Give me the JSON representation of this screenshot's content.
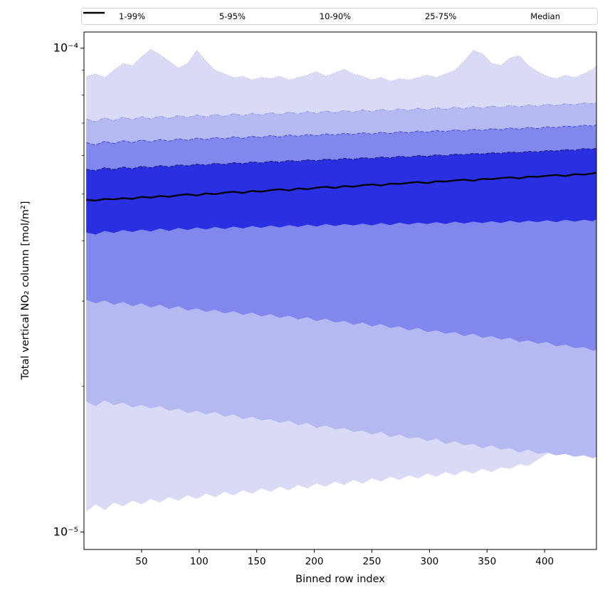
{
  "figure": {
    "background": "#ffffff"
  },
  "legend": {
    "position": "top"
  },
  "chart_data": {
    "type": "band",
    "title": "",
    "xlabel": "Binned row index",
    "ylabel": "Total vertical NO₂ column [mol/m²]",
    "xlim": [
      0,
      445
    ],
    "x_ticks": [
      50,
      100,
      150,
      200,
      250,
      300,
      350,
      400
    ],
    "yscale": "log",
    "ylim": [
      9.2e-06,
      0.000108
    ],
    "y_major_ticks": [
      1e-05,
      0.0001
    ],
    "y_tick_labels": [
      "10⁻⁵",
      "10⁻⁴"
    ],
    "y_minor_ticks": [
      2e-05,
      3e-05,
      4e-05,
      5e-05,
      6e-05,
      7e-05,
      8e-05,
      9e-05
    ],
    "value_scale": 1e-05,
    "x": [
      2,
      10,
      18,
      26,
      34,
      42,
      50,
      58,
      66,
      74,
      82,
      90,
      98,
      106,
      114,
      122,
      130,
      138,
      146,
      154,
      162,
      170,
      178,
      186,
      194,
      202,
      210,
      218,
      226,
      234,
      242,
      250,
      258,
      266,
      274,
      282,
      290,
      298,
      306,
      314,
      322,
      330,
      338,
      346,
      354,
      362,
      370,
      378,
      386,
      394,
      402,
      410,
      418,
      426,
      434,
      442,
      445
    ],
    "percentiles": {
      "p1": [
        1.1,
        1.14,
        1.11,
        1.15,
        1.13,
        1.16,
        1.14,
        1.17,
        1.15,
        1.18,
        1.16,
        1.19,
        1.17,
        1.2,
        1.18,
        1.21,
        1.19,
        1.22,
        1.2,
        1.23,
        1.21,
        1.24,
        1.22,
        1.25,
        1.23,
        1.26,
        1.24,
        1.27,
        1.25,
        1.28,
        1.26,
        1.29,
        1.27,
        1.3,
        1.28,
        1.31,
        1.29,
        1.32,
        1.3,
        1.33,
        1.31,
        1.34,
        1.32,
        1.35,
        1.33,
        1.36,
        1.35,
        1.38,
        1.37,
        1.41,
        1.45,
        1.5,
        1.56,
        1.63,
        1.71,
        1.8,
        1.9
      ],
      "p5": [
        1.86,
        1.82,
        1.87,
        1.83,
        1.85,
        1.81,
        1.83,
        1.8,
        1.82,
        1.78,
        1.8,
        1.76,
        1.78,
        1.75,
        1.77,
        1.73,
        1.75,
        1.71,
        1.73,
        1.7,
        1.71,
        1.68,
        1.7,
        1.66,
        1.68,
        1.64,
        1.66,
        1.63,
        1.64,
        1.61,
        1.62,
        1.59,
        1.61,
        1.57,
        1.59,
        1.56,
        1.57,
        1.54,
        1.56,
        1.52,
        1.54,
        1.51,
        1.52,
        1.49,
        1.51,
        1.48,
        1.49,
        1.46,
        1.48,
        1.45,
        1.46,
        1.44,
        1.45,
        1.43,
        1.44,
        1.42,
        1.43
      ],
      "p10": [
        3.02,
        2.97,
        3.01,
        2.95,
        2.99,
        2.93,
        2.97,
        2.91,
        2.95,
        2.89,
        2.93,
        2.87,
        2.9,
        2.85,
        2.88,
        2.83,
        2.86,
        2.81,
        2.84,
        2.79,
        2.82,
        2.77,
        2.8,
        2.75,
        2.78,
        2.73,
        2.76,
        2.71,
        2.73,
        2.68,
        2.71,
        2.66,
        2.69,
        2.64,
        2.66,
        2.61,
        2.64,
        2.59,
        2.61,
        2.57,
        2.59,
        2.54,
        2.57,
        2.52,
        2.54,
        2.5,
        2.52,
        2.47,
        2.49,
        2.45,
        2.47,
        2.42,
        2.44,
        2.4,
        2.41,
        2.37,
        2.38
      ],
      "p25": [
        4.16,
        4.12,
        4.19,
        4.15,
        4.21,
        4.17,
        4.22,
        4.18,
        4.24,
        4.19,
        4.25,
        4.21,
        4.26,
        4.22,
        4.27,
        4.23,
        4.28,
        4.24,
        4.29,
        4.25,
        4.3,
        4.26,
        4.31,
        4.27,
        4.32,
        4.28,
        4.33,
        4.29,
        4.33,
        4.3,
        4.34,
        4.3,
        4.35,
        4.31,
        4.36,
        4.32,
        4.36,
        4.33,
        4.37,
        4.33,
        4.38,
        4.34,
        4.38,
        4.35,
        4.39,
        4.35,
        4.4,
        4.36,
        4.4,
        4.37,
        4.41,
        4.37,
        4.42,
        4.38,
        4.42,
        4.39,
        4.43
      ],
      "p50": [
        4.86,
        4.84,
        4.88,
        4.87,
        4.9,
        4.88,
        4.93,
        4.91,
        4.95,
        4.93,
        4.97,
        4.99,
        4.96,
        5.01,
        4.99,
        5.03,
        5.05,
        5.02,
        5.07,
        5.05,
        5.09,
        5.11,
        5.08,
        5.13,
        5.11,
        5.15,
        5.17,
        5.14,
        5.19,
        5.17,
        5.21,
        5.23,
        5.2,
        5.25,
        5.24,
        5.27,
        5.29,
        5.26,
        5.31,
        5.3,
        5.33,
        5.35,
        5.32,
        5.37,
        5.36,
        5.39,
        5.41,
        5.38,
        5.43,
        5.42,
        5.45,
        5.47,
        5.44,
        5.49,
        5.48,
        5.51,
        5.53
      ],
      "p75": [
        5.62,
        5.58,
        5.66,
        5.61,
        5.68,
        5.63,
        5.7,
        5.66,
        5.72,
        5.68,
        5.74,
        5.71,
        5.76,
        5.73,
        5.78,
        5.75,
        5.8,
        5.77,
        5.82,
        5.79,
        5.84,
        5.81,
        5.86,
        5.83,
        5.88,
        5.85,
        5.9,
        5.87,
        5.92,
        5.89,
        5.94,
        5.91,
        5.96,
        5.93,
        5.98,
        5.95,
        6.0,
        5.97,
        6.02,
        5.99,
        6.04,
        6.02,
        6.06,
        6.04,
        6.08,
        6.06,
        6.1,
        6.08,
        6.12,
        6.1,
        6.14,
        6.13,
        6.17,
        6.15,
        6.2,
        6.18,
        6.23
      ],
      "p90": [
        6.38,
        6.31,
        6.42,
        6.35,
        6.44,
        6.38,
        6.46,
        6.4,
        6.48,
        6.42,
        6.5,
        6.45,
        6.52,
        6.47,
        6.54,
        6.49,
        6.56,
        6.51,
        6.58,
        6.53,
        6.6,
        6.55,
        6.62,
        6.57,
        6.63,
        6.59,
        6.65,
        6.61,
        6.67,
        6.63,
        6.69,
        6.64,
        6.7,
        6.66,
        6.72,
        6.68,
        6.74,
        6.7,
        6.76,
        6.72,
        6.78,
        6.74,
        6.8,
        6.76,
        6.82,
        6.78,
        6.84,
        6.8,
        6.86,
        6.82,
        6.88,
        6.85,
        6.9,
        6.88,
        6.93,
        6.9,
        6.95
      ],
      "p95": [
        7.14,
        7.05,
        7.18,
        7.09,
        7.2,
        7.12,
        7.22,
        7.14,
        7.24,
        7.16,
        7.26,
        7.19,
        7.28,
        7.21,
        7.3,
        7.23,
        7.32,
        7.25,
        7.34,
        7.27,
        7.36,
        7.29,
        7.38,
        7.31,
        7.4,
        7.33,
        7.42,
        7.35,
        7.44,
        7.37,
        7.46,
        7.39,
        7.48,
        7.41,
        7.5,
        7.43,
        7.52,
        7.45,
        7.54,
        7.47,
        7.56,
        7.49,
        7.58,
        7.51,
        7.6,
        7.53,
        7.62,
        7.56,
        7.64,
        7.58,
        7.66,
        7.61,
        7.68,
        7.64,
        7.71,
        7.67,
        7.73
      ],
      "p99": [
        8.75,
        8.85,
        8.7,
        9.0,
        9.3,
        9.2,
        9.6,
        9.95,
        9.7,
        9.4,
        9.1,
        9.3,
        9.9,
        9.4,
        9.0,
        8.85,
        8.7,
        8.75,
        8.6,
        8.7,
        8.65,
        8.75,
        8.6,
        8.7,
        8.8,
        8.95,
        8.75,
        8.9,
        9.05,
        8.85,
        8.75,
        8.6,
        8.7,
        8.55,
        8.65,
        8.6,
        8.7,
        8.8,
        8.7,
        8.85,
        9.0,
        9.4,
        9.9,
        9.75,
        9.3,
        9.2,
        9.55,
        9.65,
        9.2,
        8.95,
        8.75,
        8.65,
        8.8,
        8.7,
        8.85,
        9.05,
        9.2
      ]
    },
    "bands": [
      {
        "label": "1-99%",
        "lower": "p1",
        "upper": "p99",
        "fill": "#d9dbf6",
        "edge": "#b0b4ec",
        "dash": "1 2.5",
        "edge_width": 1.0
      },
      {
        "label": "5-95%",
        "lower": "p5",
        "upper": "p95",
        "fill": "#b5b9f1",
        "edge": "#9298e8",
        "dash": "5 2 1 2",
        "edge_width": 1.0
      },
      {
        "label": "10-90%",
        "lower": "p10",
        "upper": "p90",
        "fill": "#8187ec",
        "edge": "#4a51d8",
        "dash": "5 2.5",
        "edge_width": 1.1
      },
      {
        "label": "25-75%",
        "lower": "p25",
        "upper": "p75",
        "fill": "#2b2fe2",
        "edge": "#1e2384",
        "dash": "5 2.5",
        "edge_width": 1.3
      }
    ],
    "median": {
      "label": "Median",
      "key": "p50",
      "color": "#000000",
      "width": 2.3
    }
  }
}
